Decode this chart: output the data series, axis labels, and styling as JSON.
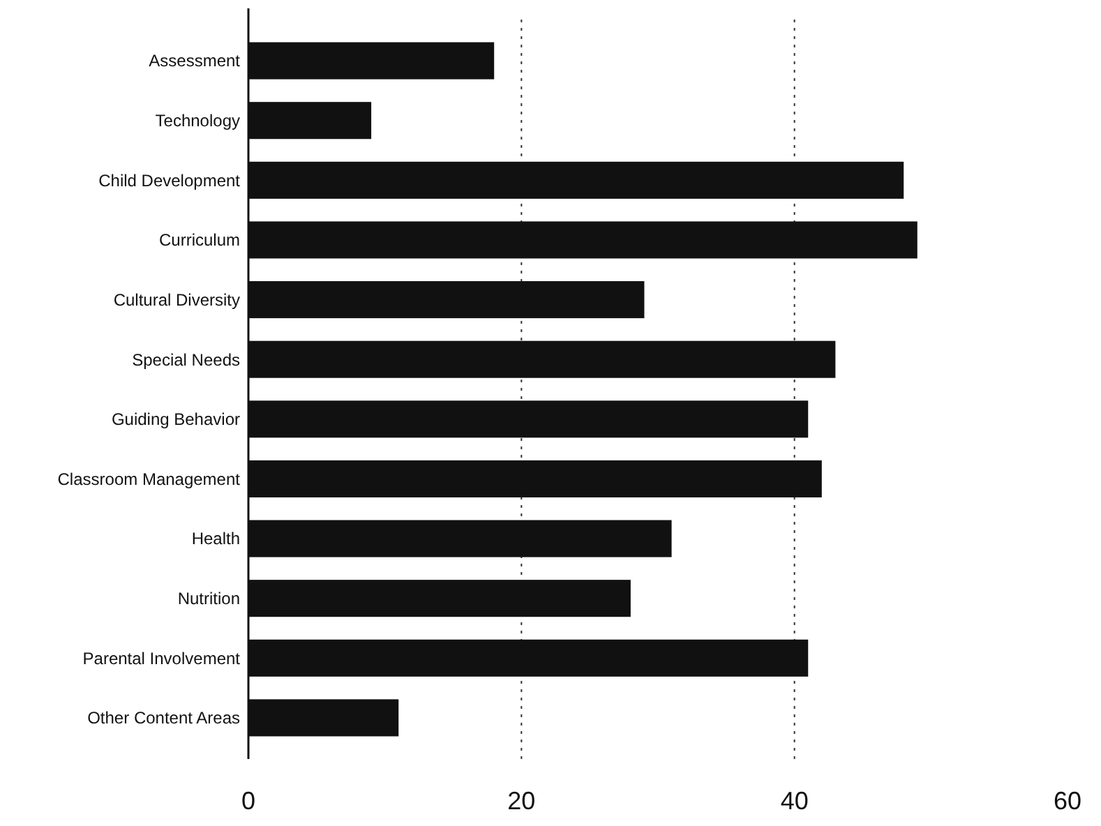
{
  "chart_data": {
    "type": "bar",
    "orientation": "horizontal",
    "categories": [
      "Assessment",
      "Technology",
      "Child Development",
      "Curriculum",
      "Cultural Diversity",
      "Special Needs",
      "Guiding Behavior",
      "Classroom Management",
      "Health",
      "Nutrition",
      "Parental Involvement",
      "Other Content Areas"
    ],
    "values": [
      18,
      9,
      48,
      49,
      29,
      43,
      41,
      42,
      31,
      28,
      41,
      11
    ],
    "color": "#111111",
    "xlim": [
      0,
      60
    ],
    "xticks": [
      0,
      20,
      40,
      60
    ],
    "grid": "x"
  }
}
